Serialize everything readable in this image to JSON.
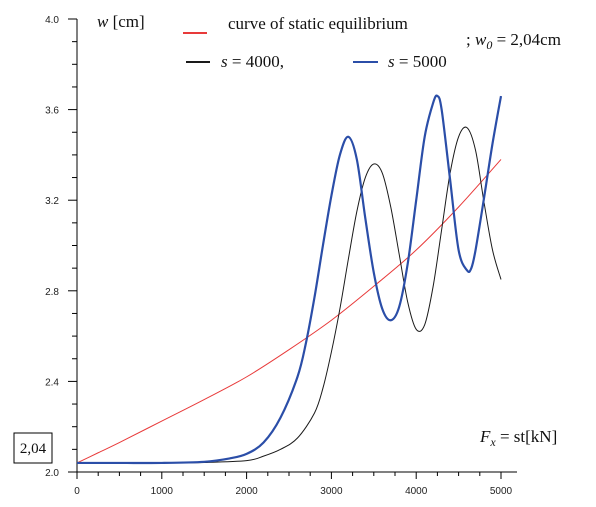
{
  "chart_data": {
    "type": "line",
    "xlim": [
      0,
      5000
    ],
    "ylim": [
      2.0,
      4.0
    ],
    "x_ticks": [
      "0",
      "1000",
      "2000",
      "3000",
      "4000",
      "5000"
    ],
    "y_ticks": [
      "2.0",
      "2.4",
      "2.8",
      "3.2",
      "3.6",
      "4.0"
    ],
    "grid": false,
    "legend_position": "top",
    "ylabel_symbol": "w",
    "ylabel_unit": " [cm]",
    "xlabel_F": "F",
    "xlabel_x": "x",
    "xlabel_rest": " = st[kN]",
    "w0_note_prefix": "; ",
    "w0_symbol": "w",
    "w0_sub": "0",
    "w0_value": " = 2,04cm",
    "w0_box": "2,04",
    "series": [
      {
        "name": "curve of static equilibrium",
        "color": "#e83a3a",
        "width": 1,
        "x": [
          0,
          250,
          500,
          1000,
          1500,
          2000,
          2500,
          3000,
          3500,
          4000,
          4500,
          5000
        ],
        "y": [
          2.04,
          2.085,
          2.13,
          2.225,
          2.32,
          2.42,
          2.54,
          2.67,
          2.82,
          2.98,
          3.17,
          3.38
        ]
      },
      {
        "name_prefix": "s",
        "name_value": " = 4000,",
        "color": "#1a1a1a",
        "width": 1,
        "x": [
          0,
          500,
          1000,
          1500,
          2000,
          2200,
          2400,
          2600,
          2800,
          2900,
          3000,
          3100,
          3200,
          3300,
          3400,
          3500,
          3600,
          3700,
          3800,
          3900,
          4000,
          4100,
          4200,
          4300,
          4400,
          4500,
          4600,
          4700,
          4800,
          4900,
          5000
        ],
        "y": [
          2.04,
          2.04,
          2.04,
          2.042,
          2.05,
          2.07,
          2.1,
          2.15,
          2.26,
          2.37,
          2.53,
          2.72,
          2.94,
          3.15,
          3.3,
          3.36,
          3.32,
          3.17,
          2.96,
          2.75,
          2.63,
          2.65,
          2.82,
          3.07,
          3.32,
          3.48,
          3.52,
          3.42,
          3.19,
          2.98,
          2.85
        ]
      },
      {
        "name_prefix": "s",
        "name_value": " = 5000",
        "color": "#2b4ea8",
        "width": 2.2,
        "x": [
          0,
          500,
          1000,
          1500,
          1800,
          2000,
          2200,
          2400,
          2600,
          2700,
          2800,
          2900,
          3000,
          3100,
          3200,
          3300,
          3400,
          3500,
          3600,
          3700,
          3800,
          3900,
          4000,
          4100,
          4200,
          4250,
          4300,
          4400,
          4500,
          4600,
          4650,
          4700,
          4800,
          4900,
          5000
        ],
        "y": [
          2.04,
          2.04,
          2.04,
          2.045,
          2.06,
          2.08,
          2.13,
          2.24,
          2.42,
          2.57,
          2.77,
          3.0,
          3.22,
          3.4,
          3.48,
          3.38,
          3.12,
          2.88,
          2.72,
          2.67,
          2.73,
          2.92,
          3.2,
          3.48,
          3.63,
          3.66,
          3.6,
          3.29,
          2.98,
          2.89,
          2.9,
          2.98,
          3.21,
          3.45,
          3.66
        ]
      }
    ]
  }
}
